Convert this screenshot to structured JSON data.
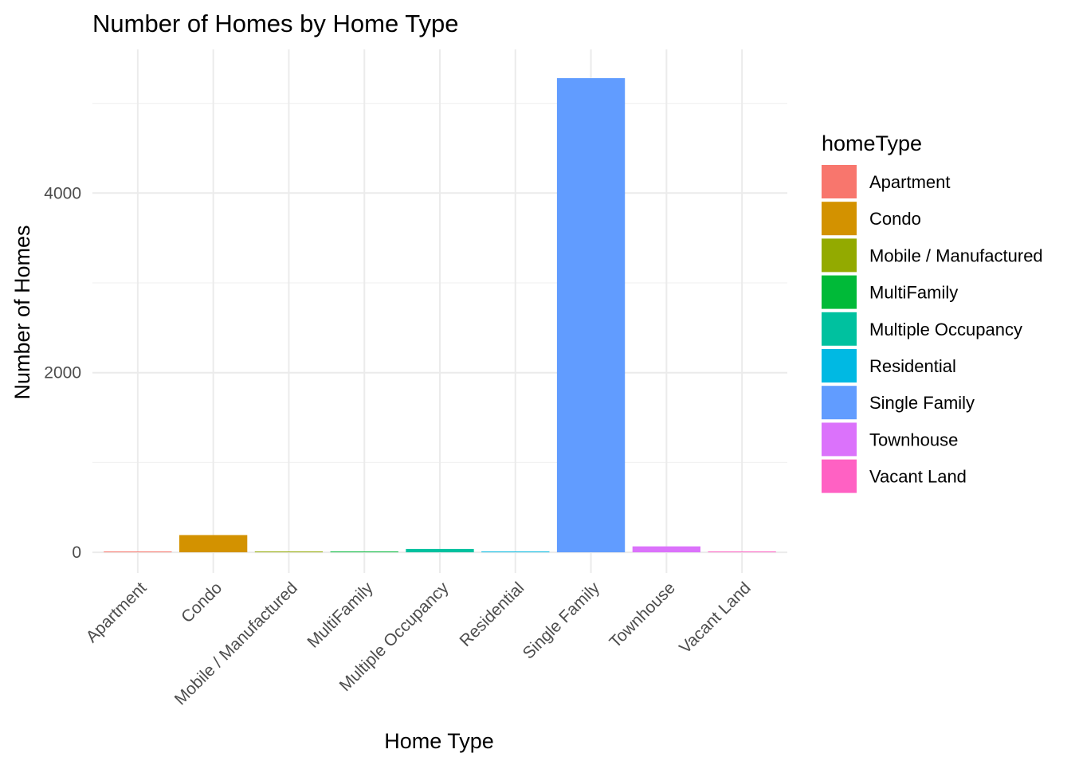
{
  "chart_data": {
    "type": "bar",
    "title": "Number of Homes by Home Type",
    "xlabel": "Home Type",
    "ylabel": "Number of Homes",
    "categories": [
      "Apartment",
      "Condo",
      "Mobile / Manufactured",
      "MultiFamily",
      "Multiple Occupancy",
      "Residential",
      "Single Family",
      "Townhouse",
      "Vacant Land"
    ],
    "values": [
      5,
      192,
      1,
      2,
      37,
      8,
      5280,
      66,
      1
    ],
    "colors": [
      "#F8766D",
      "#D39200",
      "#93AA00",
      "#00BA38",
      "#00C19F",
      "#00B9E3",
      "#619CFF",
      "#DB72FB",
      "#FF61C3"
    ],
    "ylim": [
      -230,
      5600
    ],
    "yticks": [
      0,
      2000,
      4000
    ],
    "ytick_labels": [
      "0",
      "2000",
      "4000"
    ],
    "grid": true,
    "legend": {
      "title": "homeType",
      "position": "right",
      "items": [
        "Apartment",
        "Condo",
        "Mobile / Manufactured",
        "MultiFamily",
        "Multiple Occupancy",
        "Residential",
        "Single Family",
        "Townhouse",
        "Vacant Land"
      ]
    }
  }
}
